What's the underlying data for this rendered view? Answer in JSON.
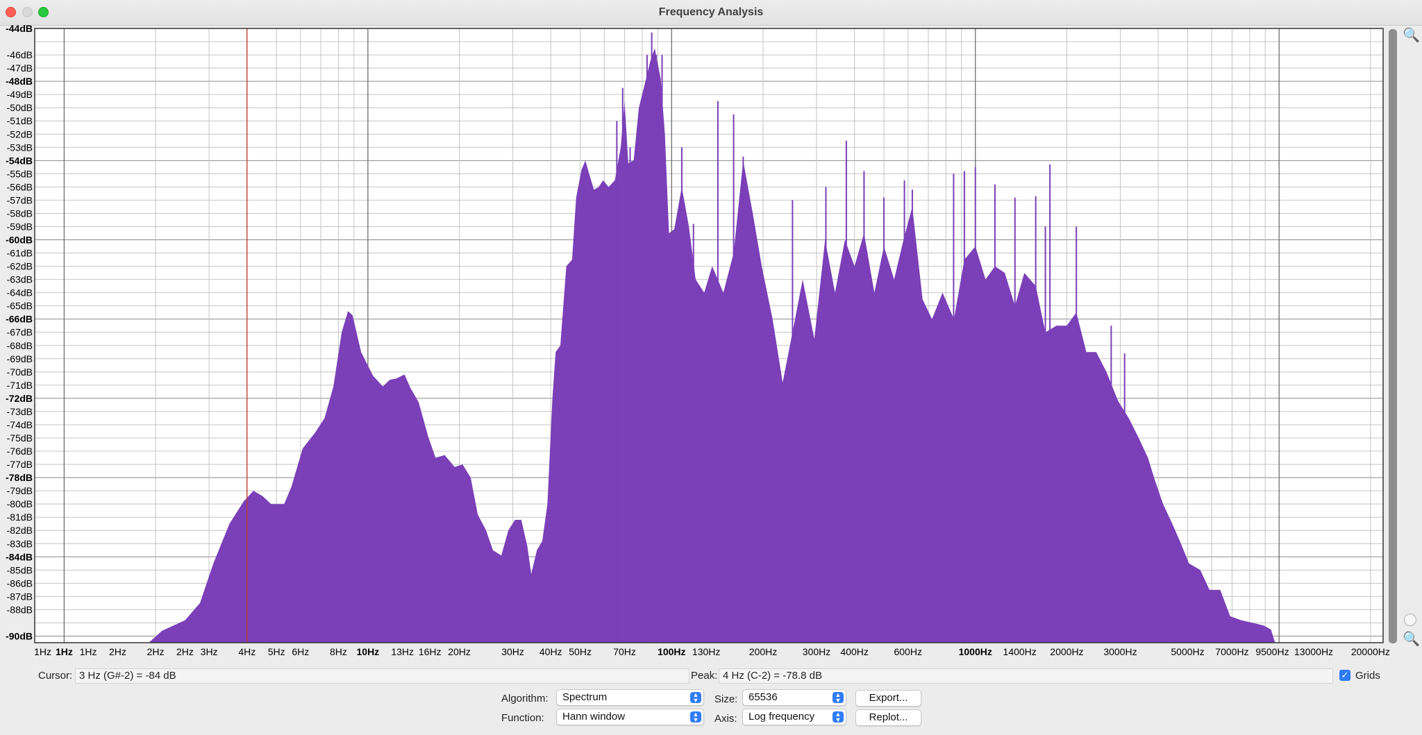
{
  "window": {
    "title": "Frequency Analysis"
  },
  "chart_data": {
    "type": "area",
    "color": "#7b3fb8",
    "yticks": [
      {
        "v": -44,
        "b": true
      },
      {
        "v": -46
      },
      {
        "v": -47
      },
      {
        "v": -48,
        "b": true
      },
      {
        "v": -49
      },
      {
        "v": -50
      },
      {
        "v": -51
      },
      {
        "v": -52
      },
      {
        "v": -53
      },
      {
        "v": -54,
        "b": true
      },
      {
        "v": -55
      },
      {
        "v": -56
      },
      {
        "v": -57
      },
      {
        "v": -58
      },
      {
        "v": -59
      },
      {
        "v": -60,
        "b": true
      },
      {
        "v": -61
      },
      {
        "v": -62
      },
      {
        "v": -63
      },
      {
        "v": -64
      },
      {
        "v": -65
      },
      {
        "v": -66,
        "b": true
      },
      {
        "v": -67
      },
      {
        "v": -68
      },
      {
        "v": -69
      },
      {
        "v": -70
      },
      {
        "v": -71
      },
      {
        "v": -72,
        "b": true
      },
      {
        "v": -73
      },
      {
        "v": -74
      },
      {
        "v": -75
      },
      {
        "v": -76
      },
      {
        "v": -77
      },
      {
        "v": -78,
        "b": true
      },
      {
        "v": -79
      },
      {
        "v": -80
      },
      {
        "v": -81
      },
      {
        "v": -82
      },
      {
        "v": -83
      },
      {
        "v": -84,
        "b": true
      },
      {
        "v": -85
      },
      {
        "v": -86
      },
      {
        "v": -87
      },
      {
        "v": -88
      },
      {
        "v": -90,
        "b": true
      }
    ],
    "ytick_labels": [
      "-44dB",
      "-46dB",
      "-47dB",
      "-48dB",
      "-49dB",
      "-50dB",
      "-51dB",
      "-52dB",
      "-53dB",
      "-54dB",
      "-55dB",
      "-56dB",
      "-57dB",
      "-58dB",
      "-59dB",
      "-60dB",
      "-61dB",
      "-62dB",
      "-63dB",
      "-64dB",
      "-65dB",
      "-66dB",
      "-67dB",
      "-68dB",
      "-69dB",
      "-70dB",
      "-71dB",
      "-72dB",
      "-73dB",
      "-74dB",
      "-75dB",
      "-76dB",
      "-77dB",
      "-78dB",
      "-79dB",
      "-80dB",
      "-81dB",
      "-82dB",
      "-83dB",
      "-84dB",
      "-85dB",
      "-86dB",
      "-87dB",
      "-88dB",
      "-90dB"
    ],
    "xtick_labels": [
      {
        "t": "1Hz",
        "f": 0.85
      },
      {
        "t": "1Hz",
        "f": 1,
        "b": true
      },
      {
        "t": "1Hz",
        "f": 1.2
      },
      {
        "t": "2Hz",
        "f": 1.5
      },
      {
        "t": "2Hz",
        "f": 2
      },
      {
        "t": "2Hz",
        "f": 2.5
      },
      {
        "t": "3Hz",
        "f": 3
      },
      {
        "t": "4Hz",
        "f": 4
      },
      {
        "t": "5Hz",
        "f": 5
      },
      {
        "t": "6Hz",
        "f": 6
      },
      {
        "t": "8Hz",
        "f": 8
      },
      {
        "t": "10Hz",
        "f": 10,
        "b": true
      },
      {
        "t": "13Hz",
        "f": 13
      },
      {
        "t": "16Hz",
        "f": 16
      },
      {
        "t": "20Hz",
        "f": 20
      },
      {
        "t": "30Hz",
        "f": 30
      },
      {
        "t": "40Hz",
        "f": 40
      },
      {
        "t": "50Hz",
        "f": 50
      },
      {
        "t": "70Hz",
        "f": 70
      },
      {
        "t": "100Hz",
        "f": 100,
        "b": true
      },
      {
        "t": "130Hz",
        "f": 130
      },
      {
        "t": "200Hz",
        "f": 200
      },
      {
        "t": "300Hz",
        "f": 300
      },
      {
        "t": "400Hz",
        "f": 400
      },
      {
        "t": "600Hz",
        "f": 600
      },
      {
        "t": "1000Hz",
        "f": 1000,
        "b": true
      },
      {
        "t": "1400Hz",
        "f": 1400
      },
      {
        "t": "2000Hz",
        "f": 2000
      },
      {
        "t": "3000Hz",
        "f": 3000
      },
      {
        "t": "5000Hz",
        "f": 5000
      },
      {
        "t": "7000Hz",
        "f": 7000
      },
      {
        "t": "9500Hz",
        "f": 9500
      },
      {
        "t": "13000Hz",
        "f": 13000
      },
      {
        "t": "20000Hz",
        "f": 20000
      }
    ],
    "xlim_hz": [
      0.8,
      22000
    ],
    "ylim_db": [
      -90.5,
      -44
    ],
    "x_scale": "log",
    "grid": true,
    "cursor_line_hz": 4,
    "spectrum": [
      [
        1.9,
        -90.5
      ],
      [
        2.1,
        -89.6
      ],
      [
        2.5,
        -88.8
      ],
      [
        2.8,
        -87.5
      ],
      [
        3.1,
        -84.5
      ],
      [
        3.5,
        -81.5
      ],
      [
        3.9,
        -79.8
      ],
      [
        4.2,
        -79
      ],
      [
        4.5,
        -79.4
      ],
      [
        4.8,
        -80
      ],
      [
        5.3,
        -80
      ],
      [
        5.6,
        -78.7
      ],
      [
        6.1,
        -75.8
      ],
      [
        6.7,
        -74.6
      ],
      [
        7.2,
        -73.5
      ],
      [
        7.7,
        -71.1
      ],
      [
        8.2,
        -67
      ],
      [
        8.6,
        -65.4
      ],
      [
        8.9,
        -65.7
      ],
      [
        9.5,
        -68.5
      ],
      [
        10.4,
        -70.3
      ],
      [
        11.2,
        -71.1
      ],
      [
        11.8,
        -70.6
      ],
      [
        12.4,
        -70.5
      ],
      [
        13.2,
        -70.2
      ],
      [
        13.8,
        -71.2
      ],
      [
        14.7,
        -72.3
      ],
      [
        15.8,
        -74.9
      ],
      [
        16.7,
        -76.5
      ],
      [
        17.9,
        -76.3
      ],
      [
        19.3,
        -77.2
      ],
      [
        20.5,
        -77
      ],
      [
        21.8,
        -78
      ],
      [
        23,
        -80.8
      ],
      [
        24.5,
        -82
      ],
      [
        25.8,
        -83.5
      ],
      [
        27.5,
        -83.9
      ],
      [
        29,
        -82
      ],
      [
        30.5,
        -81.2
      ],
      [
        32,
        -81.2
      ],
      [
        33.5,
        -83.2
      ],
      [
        34.5,
        -85.3
      ],
      [
        36,
        -83.5
      ],
      [
        37.5,
        -82.8
      ],
      [
        39,
        -80
      ],
      [
        40.5,
        -72
      ],
      [
        41.5,
        -68.5
      ],
      [
        43,
        -68
      ],
      [
        45,
        -62
      ],
      [
        47,
        -61.5
      ],
      [
        48.5,
        -56.8
      ],
      [
        50.5,
        -54.7
      ],
      [
        52,
        -54
      ],
      [
        53.5,
        -55
      ],
      [
        55.5,
        -56.2
      ],
      [
        57.5,
        -56
      ],
      [
        59.5,
        -55.5
      ],
      [
        62,
        -56
      ],
      [
        65,
        -55.5
      ],
      [
        68,
        -53
      ],
      [
        70,
        -49.5
      ],
      [
        72,
        -54.2
      ],
      [
        75,
        -54
      ],
      [
        78,
        -50
      ],
      [
        82,
        -48
      ],
      [
        85,
        -46.5
      ],
      [
        88,
        -45.5
      ],
      [
        92,
        -47.8
      ],
      [
        95,
        -52
      ],
      [
        98,
        -59.5
      ],
      [
        102,
        -59.2
      ],
      [
        108,
        -56
      ],
      [
        114,
        -59
      ],
      [
        120,
        -63
      ],
      [
        128,
        -64
      ],
      [
        136,
        -62
      ],
      [
        148,
        -64
      ],
      [
        160,
        -61
      ],
      [
        172,
        -54
      ],
      [
        185,
        -58
      ],
      [
        198,
        -62
      ],
      [
        215,
        -66
      ],
      [
        232,
        -70.8
      ],
      [
        250,
        -67
      ],
      [
        270,
        -63
      ],
      [
        295,
        -67.5
      ],
      [
        320,
        -60
      ],
      [
        345,
        -64
      ],
      [
        372,
        -60
      ],
      [
        400,
        -62
      ],
      [
        430,
        -59.5
      ],
      [
        465,
        -64
      ],
      [
        500,
        -60.5
      ],
      [
        540,
        -63
      ],
      [
        580,
        -60
      ],
      [
        620,
        -57.5
      ],
      [
        670,
        -64.5
      ],
      [
        720,
        -66
      ],
      [
        780,
        -64
      ],
      [
        850,
        -66
      ],
      [
        920,
        -61.5
      ],
      [
        1000,
        -60.5
      ],
      [
        1080,
        -63
      ],
      [
        1160,
        -62
      ],
      [
        1250,
        -62.5
      ],
      [
        1350,
        -65
      ],
      [
        1450,
        -62.5
      ],
      [
        1580,
        -63.5
      ],
      [
        1700,
        -67
      ],
      [
        1850,
        -66.5
      ],
      [
        2000,
        -66.5
      ],
      [
        2150,
        -65.5
      ],
      [
        2320,
        -68.5
      ],
      [
        2500,
        -68.5
      ],
      [
        2700,
        -70
      ],
      [
        2950,
        -72.2
      ],
      [
        3200,
        -73.5
      ],
      [
        3450,
        -75
      ],
      [
        3700,
        -76.5
      ],
      [
        3900,
        -78.2
      ],
      [
        4150,
        -80
      ],
      [
        4450,
        -81.5
      ],
      [
        4750,
        -83
      ],
      [
        5050,
        -84.5
      ],
      [
        5500,
        -85
      ],
      [
        5900,
        -86.5
      ],
      [
        6400,
        -86.5
      ],
      [
        6900,
        -88.5
      ],
      [
        7500,
        -88.8
      ],
      [
        8200,
        -89
      ],
      [
        8900,
        -89.2
      ],
      [
        9400,
        -89.5
      ],
      [
        9700,
        -90.5
      ]
    ],
    "spikes": [
      [
        66,
        -51
      ],
      [
        69,
        -48.5
      ],
      [
        73,
        -53
      ],
      [
        79,
        -50
      ],
      [
        83,
        -46
      ],
      [
        86,
        -44.3
      ],
      [
        89,
        -46
      ],
      [
        93,
        -46
      ],
      [
        108,
        -53
      ],
      [
        118,
        -58.8
      ],
      [
        142,
        -49.5
      ],
      [
        160,
        -50.5
      ],
      [
        172,
        -53.7
      ],
      [
        250,
        -57
      ],
      [
        322,
        -56
      ],
      [
        376,
        -52.5
      ],
      [
        430,
        -54.8
      ],
      [
        500,
        -56.8
      ],
      [
        584,
        -55.5
      ],
      [
        620,
        -56.2
      ],
      [
        848,
        -55
      ],
      [
        920,
        -54.8
      ],
      [
        1000,
        -54.5
      ],
      [
        1160,
        -55.8
      ],
      [
        1350,
        -56.8
      ],
      [
        1580,
        -56.7
      ],
      [
        1700,
        -59
      ],
      [
        1760,
        -54.3
      ],
      [
        2150,
        -59
      ],
      [
        2800,
        -66.5
      ],
      [
        3100,
        -68.6
      ]
    ]
  },
  "footer": {
    "cursor_label": "Cursor:",
    "cursor_value": "3 Hz (G#-2) = -84 dB",
    "peak_label": "Peak:",
    "peak_value": "4 Hz (C-2) = -78.8 dB",
    "grids_label": "Grids",
    "grids_checked": true,
    "algorithm_label": "Algorithm:",
    "algorithm_value": "Spectrum",
    "function_label": "Function:",
    "function_value": "Hann window",
    "size_label": "Size:",
    "size_value": "65536",
    "axis_label": "Axis:",
    "axis_value": "Log frequency",
    "export_label": "Export...",
    "replot_label": "Replot..."
  }
}
